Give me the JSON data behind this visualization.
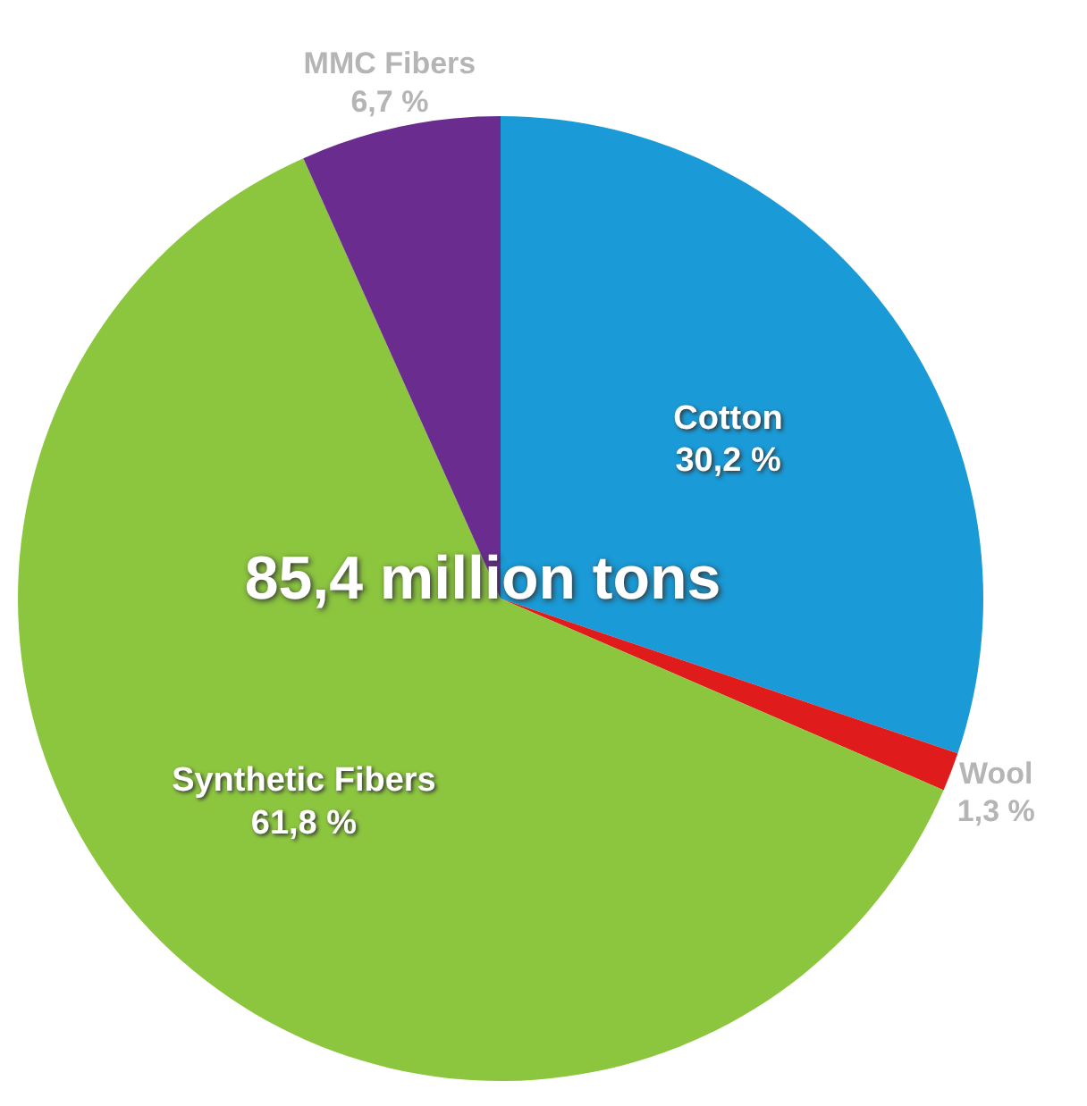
{
  "chart_data": {
    "type": "pie",
    "title": "85,4 million tons",
    "categories": [
      "Cotton",
      "Wool",
      "Synthetic Fibers",
      "MMC Fibers"
    ],
    "values": [
      30.2,
      1.3,
      61.8,
      6.7
    ],
    "value_labels": [
      "30,2 %",
      "1,3 %",
      "61,8 %",
      "6,7 %"
    ],
    "colors": [
      "#1a9ad6",
      "#e01b1b",
      "#8cc63f",
      "#6a2d8f"
    ]
  }
}
